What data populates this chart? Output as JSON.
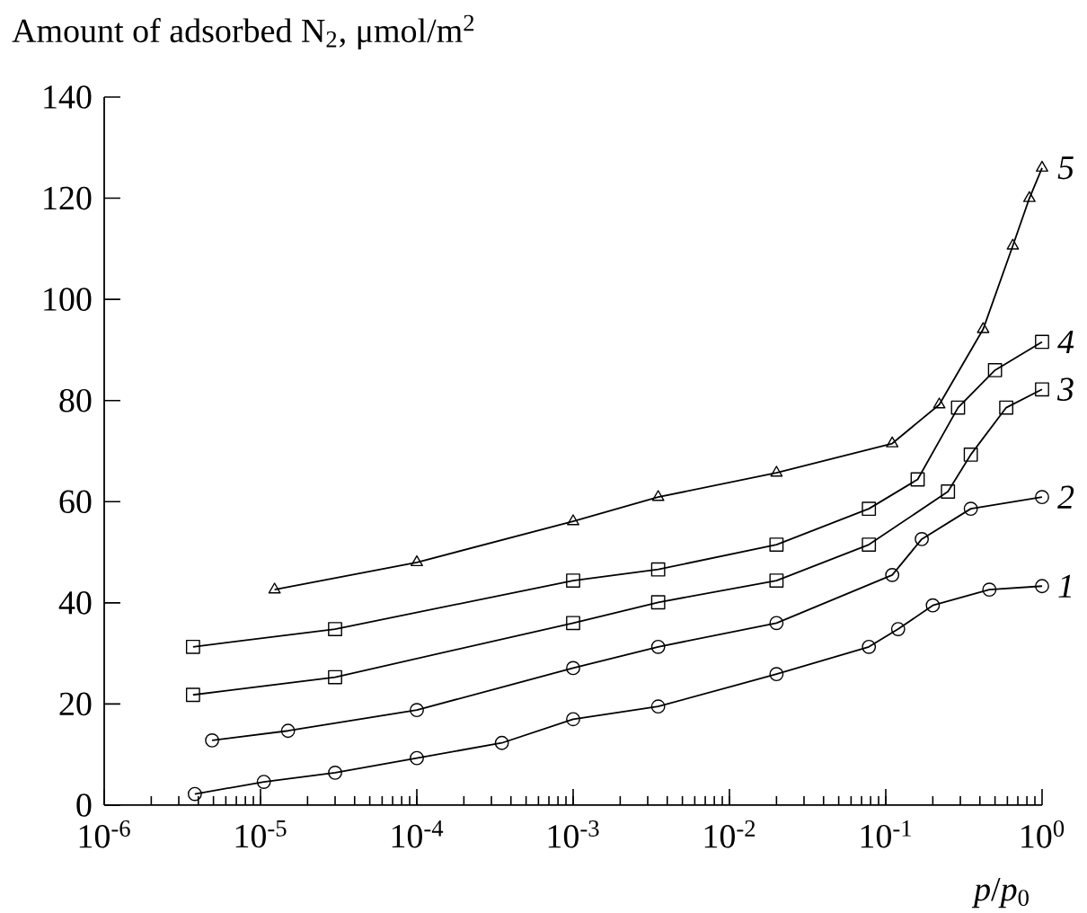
{
  "chart_data": {
    "type": "line",
    "xlabel": "*p*/*p*$_{0}$",
    "ylabel": "Amount of adsorbed N$_{2}$, μmol/m$^{2}$",
    "log": "x",
    "xlim": [
      1e-06,
      1
    ],
    "ylim": [
      0,
      140
    ],
    "xticks": [
      {
        "value": 1e-06,
        "label": "10$^{-6}$"
      },
      {
        "value": 1e-05,
        "label": "10$^{-5}$"
      },
      {
        "value": 0.0001,
        "label": "10$^{-4}$"
      },
      {
        "value": 0.001,
        "label": "10$^{-3}$"
      },
      {
        "value": 0.01,
        "label": "10$^{-2}$"
      },
      {
        "value": 0.1,
        "label": "10$^{-1}$"
      },
      {
        "value": 1,
        "label": "10$^{0}$"
      }
    ],
    "yticks": [
      0,
      20,
      40,
      60,
      80,
      100,
      120,
      140
    ],
    "grid": false,
    "line_style": "solid",
    "series": [
      {
        "name": "1",
        "color": "#000000",
        "marker": "circle",
        "x": [
          3.8e-06,
          1.05e-05,
          3e-05,
          0.0001,
          0.00035,
          0.001,
          0.0035,
          0.02,
          0.078,
          0.12,
          0.2,
          0.46,
          1
        ],
        "values": [
          2.2,
          4.6,
          6.4,
          9.3,
          12.3,
          17,
          19.5,
          25.9,
          31.3,
          34.8,
          39.5,
          42.6,
          43.3
        ]
      },
      {
        "name": "2",
        "color": "#000000",
        "marker": "circle",
        "x": [
          4.9e-06,
          1.5e-05,
          0.0001,
          0.001,
          0.0035,
          0.02,
          0.11,
          0.17,
          0.35,
          1
        ],
        "values": [
          12.8,
          14.7,
          18.8,
          27.1,
          31.3,
          36,
          45.5,
          52.6,
          58.6,
          60.9
        ]
      },
      {
        "name": "3",
        "color": "#000000",
        "marker": "square",
        "x": [
          3.7e-06,
          3e-05,
          0.001,
          0.0035,
          0.02,
          0.078,
          0.25,
          0.35,
          0.59,
          1
        ],
        "values": [
          21.8,
          25.3,
          36,
          40.1,
          44.4,
          51.5,
          62,
          69.3,
          78.6,
          82.2
        ]
      },
      {
        "name": "4",
        "color": "#000000",
        "marker": "square",
        "x": [
          3.7e-06,
          3e-05,
          0.001,
          0.0035,
          0.02,
          0.078,
          0.16,
          0.29,
          0.5,
          1
        ],
        "values": [
          31.3,
          34.8,
          44.4,
          46.6,
          51.5,
          58.6,
          64.4,
          78.6,
          86,
          91.6
        ]
      },
      {
        "name": "5",
        "color": "#000000",
        "marker": "triangle",
        "x": [
          1.23e-05,
          0.0001,
          0.001,
          0.0035,
          0.02,
          0.11,
          0.22,
          0.42,
          0.65,
          0.83,
          1
        ],
        "values": [
          42.6,
          48,
          56.1,
          60.9,
          65.7,
          71.5,
          79.2,
          94.1,
          110.6,
          120,
          126
        ]
      }
    ]
  }
}
